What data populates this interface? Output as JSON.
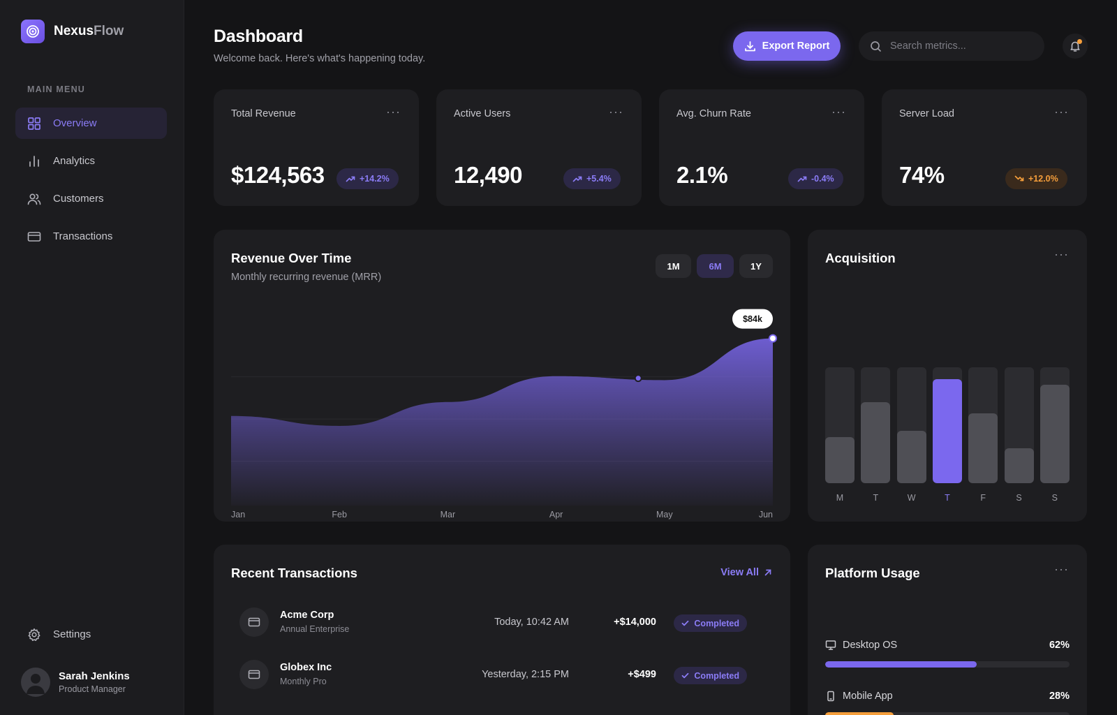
{
  "brand": {
    "name_bold": "Nexus",
    "name_light": "Flow"
  },
  "sidebar": {
    "menu_heading": "MAIN MENU",
    "items": [
      {
        "label": "Overview",
        "icon": "grid-icon",
        "active": true
      },
      {
        "label": "Analytics",
        "icon": "bar-chart-icon",
        "active": false
      },
      {
        "label": "Customers",
        "icon": "users-icon",
        "active": false
      },
      {
        "label": "Transactions",
        "icon": "credit-card-icon",
        "active": false
      }
    ],
    "settings_label": "Settings",
    "user": {
      "name": "Sarah Jenkins",
      "role": "Product Manager"
    }
  },
  "header": {
    "title": "Dashboard",
    "subtitle": "Welcome back. Here's what's happening today.",
    "export_label": "Export Report",
    "search_placeholder": "Search metrics..."
  },
  "stats": [
    {
      "label": "Total Revenue",
      "value": "$124,563",
      "change": "+14.2%",
      "trend": "up"
    },
    {
      "label": "Active Users",
      "value": "12,490",
      "change": "+5.4%",
      "trend": "up"
    },
    {
      "label": "Avg. Churn Rate",
      "value": "2.1%",
      "change": "-0.4%",
      "trend": "up"
    },
    {
      "label": "Server Load",
      "value": "74%",
      "change": "+12.0%",
      "trend": "warn"
    }
  ],
  "revenue": {
    "title": "Revenue Over Time",
    "subtitle": "Monthly recurring revenue (MRR)",
    "ranges": [
      "1M",
      "6M",
      "1Y"
    ],
    "active_range": "6M",
    "tooltip": "$84k"
  },
  "chart_data": [
    {
      "type": "area",
      "x": [
        "Jan",
        "Feb",
        "Mar",
        "Apr",
        "May",
        "Jun"
      ],
      "series": [
        {
          "values": [
            45,
            40,
            52,
            65,
            63,
            84
          ]
        }
      ],
      "ylim": [
        0,
        100
      ],
      "annotations": [
        "$84k"
      ],
      "grid": true
    },
    {
      "type": "bar",
      "title": "Acquisition",
      "categories": [
        "M",
        "T",
        "W",
        "T",
        "F",
        "S",
        "S"
      ],
      "values": [
        40,
        70,
        45,
        90,
        60,
        30,
        85
      ],
      "ylim": [
        0,
        100
      ],
      "highlight_index": 3
    }
  ],
  "acquisition": {
    "title": "Acquisition"
  },
  "transactions": {
    "title": "Recent Transactions",
    "view_all": "View All",
    "rows": [
      {
        "name": "Acme Corp",
        "plan": "Annual Enterprise",
        "time": "Today, 10:42 AM",
        "amount": "+$14,000",
        "status": "Completed"
      },
      {
        "name": "Globex Inc",
        "plan": "Monthly Pro",
        "time": "Yesterday, 2:15 PM",
        "amount": "+$499",
        "status": "Completed"
      }
    ]
  },
  "platform": {
    "title": "Platform Usage",
    "rows": [
      {
        "label": "Desktop OS",
        "pct": "62%",
        "fraction": 0.62,
        "color": "#7b68ee",
        "icon": "monitor-icon"
      },
      {
        "label": "Mobile App",
        "pct": "28%",
        "fraction": 0.28,
        "color": "#f59e3b",
        "icon": "smartphone-icon"
      }
    ]
  },
  "colors": {
    "accent": "#7b68ee",
    "warning": "#f59e3b",
    "card": "#1e1e21",
    "background": "#141416"
  }
}
